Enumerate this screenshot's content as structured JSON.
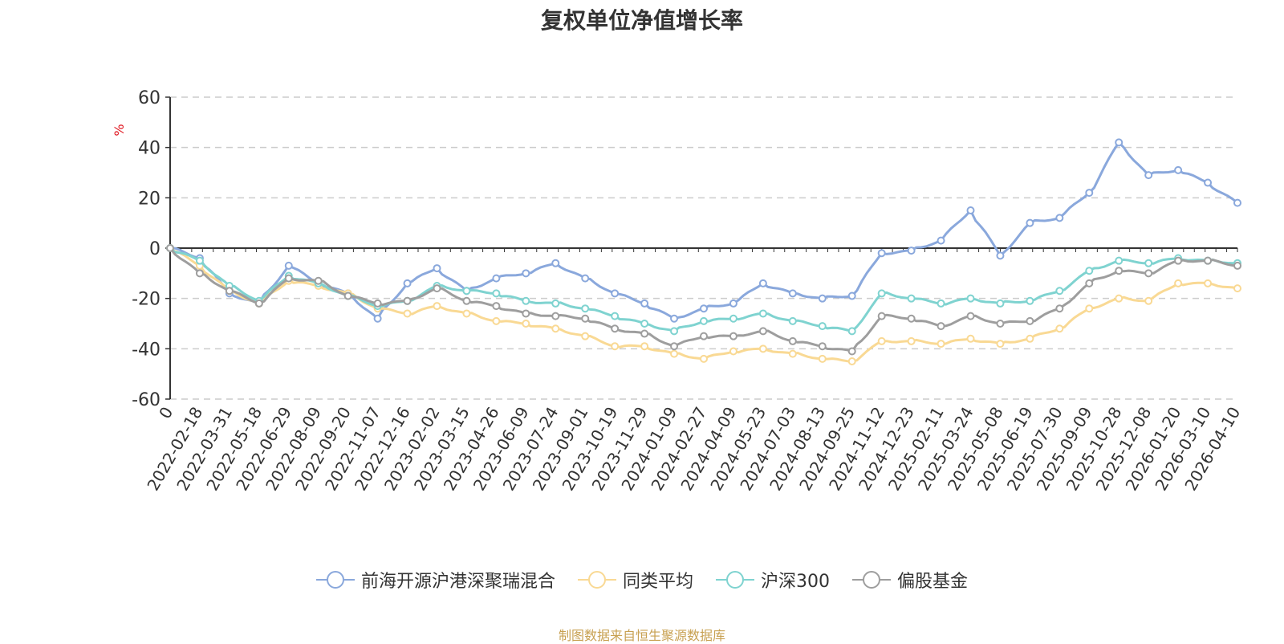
{
  "title": "复权单位净值增长率",
  "source": "制图数据来自恒生聚源数据库",
  "colors": {
    "fund": "#8aa8dc",
    "peer": "#f9d994",
    "hs300": "#7fd3d0",
    "equity": "#9e9e9e",
    "zero_axis": "#333333",
    "grid": "#cccccc",
    "unit": "#e0141e",
    "source": "#c8a152"
  },
  "chart_data": {
    "type": "line",
    "title": "复权单位净值增长率",
    "ylabel": "%",
    "ylim": [
      -60,
      60
    ],
    "yticks": [
      -60,
      -40,
      -20,
      0,
      20,
      40,
      60
    ],
    "grid": true,
    "legend_position": "bottom",
    "x": [
      "0",
      "2022-02-18",
      "2022-03-31",
      "2022-05-18",
      "2022-06-29",
      "2022-08-09",
      "2022-09-20",
      "2022-11-07",
      "2022-12-16",
      "2023-02-02",
      "2023-03-15",
      "2023-04-26",
      "2023-06-09",
      "2023-07-24",
      "2023-09-01",
      "2023-10-19",
      "2023-11-29",
      "2024-01-09",
      "2024-02-27",
      "2024-04-09",
      "2024-05-23",
      "2024-07-03",
      "2024-08-13",
      "2024-09-25",
      "2024-11-12",
      "2024-12-23",
      "2025-02-11",
      "2025-03-24",
      "2025-05-08",
      "2025-06-19",
      "2025-07-30",
      "2025-09-09",
      "2025-10-28",
      "2025-12-08",
      "2026-01-20",
      "2026-03-10",
      "2026-04-10"
    ],
    "series": [
      {
        "name": "前海开源沪港深聚瑞混合",
        "key": "fund",
        "values": [
          0,
          -4,
          -18,
          -22,
          -7,
          -14,
          -18,
          -28,
          -14,
          -8,
          -17,
          -12,
          -10,
          -6,
          -12,
          -18,
          -22,
          -28,
          -24,
          -22,
          -14,
          -18,
          -20,
          -19,
          -2,
          -1,
          3,
          15,
          -3,
          10,
          12,
          22,
          42,
          29,
          31,
          26,
          18
        ]
      },
      {
        "name": "同类平均",
        "key": "peer",
        "values": [
          0,
          -7,
          -17,
          -22,
          -13,
          -15,
          -18,
          -24,
          -26,
          -23,
          -26,
          -29,
          -30,
          -32,
          -35,
          -39,
          -39,
          -42,
          -44,
          -41,
          -40,
          -42,
          -44,
          -45,
          -37,
          -37,
          -38,
          -36,
          -38,
          -36,
          -32,
          -24,
          -20,
          -21,
          -14,
          -14,
          -16
        ]
      },
      {
        "name": "沪深300",
        "key": "hs300",
        "values": [
          0,
          -5,
          -15,
          -21,
          -11,
          -14,
          -19,
          -23,
          -21,
          -15,
          -17,
          -18,
          -21,
          -22,
          -24,
          -27,
          -30,
          -33,
          -29,
          -28,
          -26,
          -29,
          -31,
          -33,
          -18,
          -20,
          -22,
          -20,
          -22,
          -21,
          -17,
          -9,
          -5,
          -6,
          -4,
          -5,
          -6
        ]
      },
      {
        "name": "偏股基金",
        "key": "equity",
        "values": [
          0,
          -10,
          -17,
          -22,
          -12,
          -13,
          -19,
          -22,
          -21,
          -16,
          -21,
          -23,
          -26,
          -27,
          -28,
          -32,
          -34,
          -39,
          -35,
          -35,
          -33,
          -37,
          -39,
          -41,
          -27,
          -28,
          -31,
          -27,
          -30,
          -29,
          -24,
          -14,
          -9,
          -10,
          -5,
          -5,
          -7
        ]
      }
    ]
  }
}
